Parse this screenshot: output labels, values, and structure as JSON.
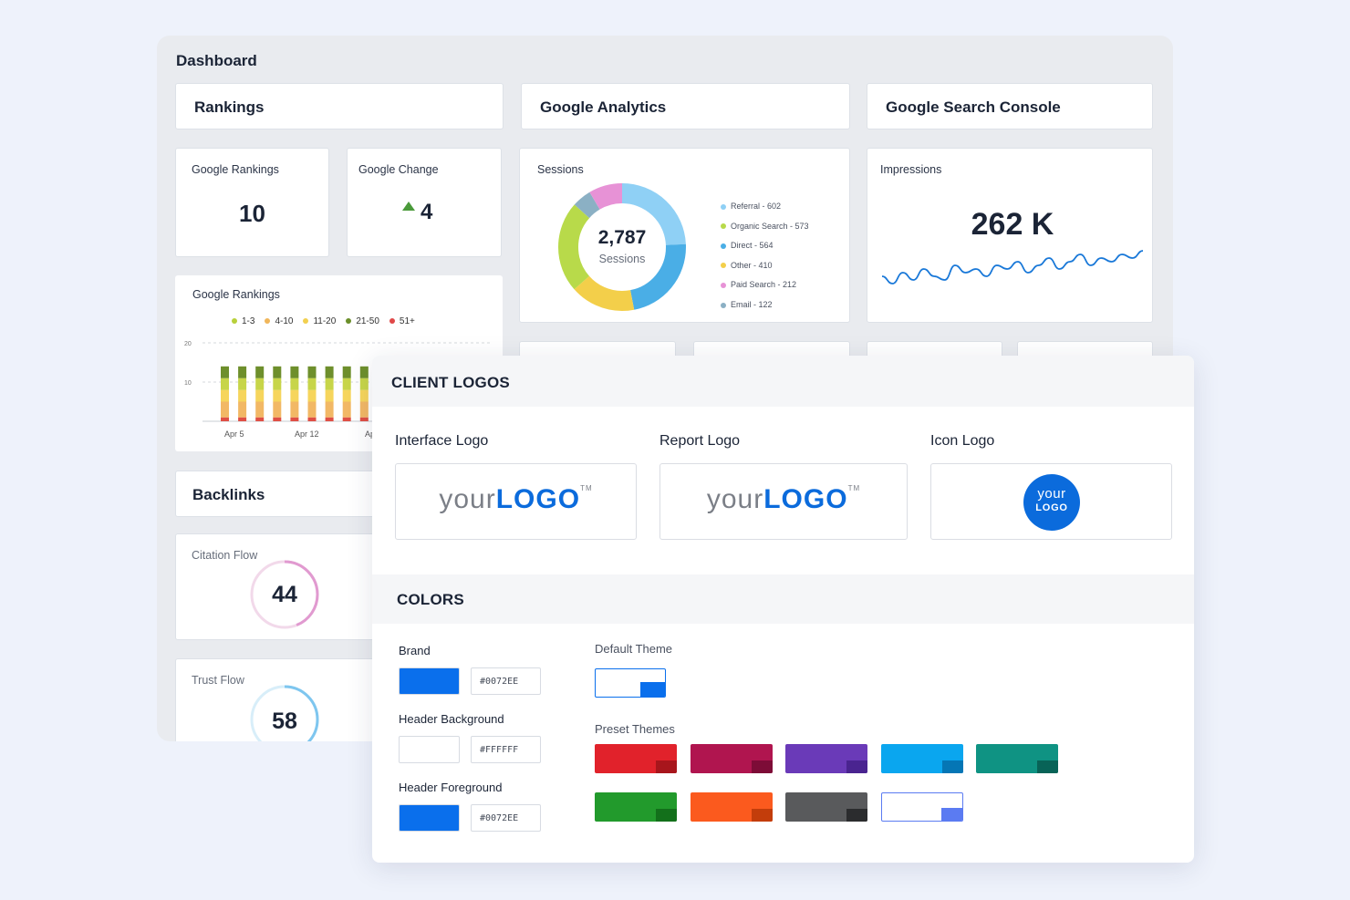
{
  "dashboard": {
    "title": "Dashboard",
    "sections": {
      "rankings": "Rankings",
      "analytics": "Google Analytics",
      "search_console": "Google Search Console",
      "backlinks": "Backlinks"
    },
    "google_rankings": {
      "label": "Google Rankings",
      "value": "10"
    },
    "google_change": {
      "label": "Google Change",
      "value": "4"
    },
    "sessions": {
      "label": "Sessions",
      "total": "2,787",
      "total_label": "Sessions"
    },
    "impressions": {
      "label": "Impressions",
      "value": "262 K"
    },
    "rank_chart": {
      "label": "Google Rankings",
      "y_ticks": [
        "20",
        "10"
      ],
      "x_ticks": [
        "Apr 5",
        "Apr 12",
        "Ap"
      ]
    },
    "citation_flow": {
      "label": "Citation Flow",
      "value": "44"
    },
    "trust_flow": {
      "label": "Trust Flow",
      "value": "58"
    }
  },
  "chart_data": [
    {
      "type": "pie",
      "title": "Sessions",
      "categories": [
        "Referral - 602",
        "Organic Search - 573",
        "Direct - 564",
        "Other - 410",
        "Paid Search - 212",
        "Email - 122"
      ],
      "values": [
        602,
        573,
        564,
        410,
        212,
        122
      ],
      "colors": [
        "#8fd0f5",
        "#b8da4a",
        "#4aaee6",
        "#f3cf4a",
        "#e792d6",
        "#8bb0c4"
      ],
      "total": 2787
    },
    {
      "type": "bar",
      "title": "Google Rankings",
      "legend": [
        "1-3",
        "4-10",
        "11-20",
        "21-50",
        "51+"
      ],
      "legend_colors": [
        "#b8d03a",
        "#f0b65a",
        "#f2d050",
        "#6b8f2a",
        "#e04848"
      ],
      "categories": [
        "",
        "",
        "",
        "",
        "",
        "",
        "",
        "",
        "",
        ""
      ],
      "series": [
        {
          "name": "51+",
          "values": [
            1,
            1,
            1,
            1,
            1,
            1,
            1,
            1,
            1,
            1
          ]
        },
        {
          "name": "4-10",
          "values": [
            4,
            4,
            4,
            4,
            4,
            4,
            4,
            4,
            4,
            4
          ]
        },
        {
          "name": "11-20",
          "values": [
            3,
            3,
            3,
            3,
            3,
            3,
            3,
            3,
            3,
            3
          ]
        },
        {
          "name": "1-3",
          "values": [
            3,
            3,
            3,
            3,
            3,
            3,
            3,
            3,
            3,
            3
          ]
        },
        {
          "name": "21-50",
          "values": [
            3,
            3,
            3,
            3,
            3,
            3,
            3,
            3,
            3,
            3
          ]
        }
      ],
      "x_ticks": [
        "Apr 5",
        "Apr 12",
        "Ap"
      ],
      "y_ticks": [
        "20",
        "10"
      ],
      "ylim": [
        0,
        20
      ]
    },
    {
      "type": "line",
      "title": "Impressions",
      "values": [
        3,
        1,
        4,
        2,
        5,
        3,
        2,
        6,
        4,
        5,
        3,
        6,
        5,
        7,
        4,
        6,
        8,
        5,
        7,
        9,
        6,
        8,
        7,
        9,
        8,
        10
      ]
    }
  ],
  "overlay": {
    "client_logos_heading": "CLIENT LOGOS",
    "interface_logo": {
      "label": "Interface Logo",
      "thin": "your",
      "bold": "LOGO",
      "tm": "TM"
    },
    "report_logo": {
      "label": "Report Logo",
      "thin": "your",
      "bold": "LOGO",
      "tm": "TM"
    },
    "icon_logo": {
      "label": "Icon Logo",
      "line1": "your",
      "line2": "LOGO"
    },
    "colors_heading": "COLORS",
    "brand": {
      "label": "Brand",
      "hex": "#0072EE",
      "color": "#0a6fec"
    },
    "header_bg": {
      "label": "Header Background",
      "hex": "#FFFFFF",
      "color": "#ffffff"
    },
    "header_fg": {
      "label": "Header Foreground",
      "hex": "#0072EE",
      "color": "#0a6fec"
    },
    "default_theme_label": "Default Theme",
    "preset_themes_label": "Preset Themes",
    "presets": [
      {
        "main": "#e1222b",
        "tab": "#a8161c"
      },
      {
        "main": "#b0154f",
        "tab": "#7d0c37"
      },
      {
        "main": "#6a3ab8",
        "tab": "#4a2490"
      },
      {
        "main": "#0aa6ef",
        "tab": "#0576b5"
      },
      {
        "main": "#0f9383",
        "tab": "#086357"
      },
      {
        "main": "#229a2c",
        "tab": "#13701b"
      },
      {
        "main": "#fb5a1e",
        "tab": "#c33d0b"
      },
      {
        "main": "#595a5c",
        "tab": "#2b2c2e"
      },
      {
        "main": "#ffffff",
        "tab": "#5b7bf2",
        "border": "#5b7bf2"
      }
    ]
  }
}
